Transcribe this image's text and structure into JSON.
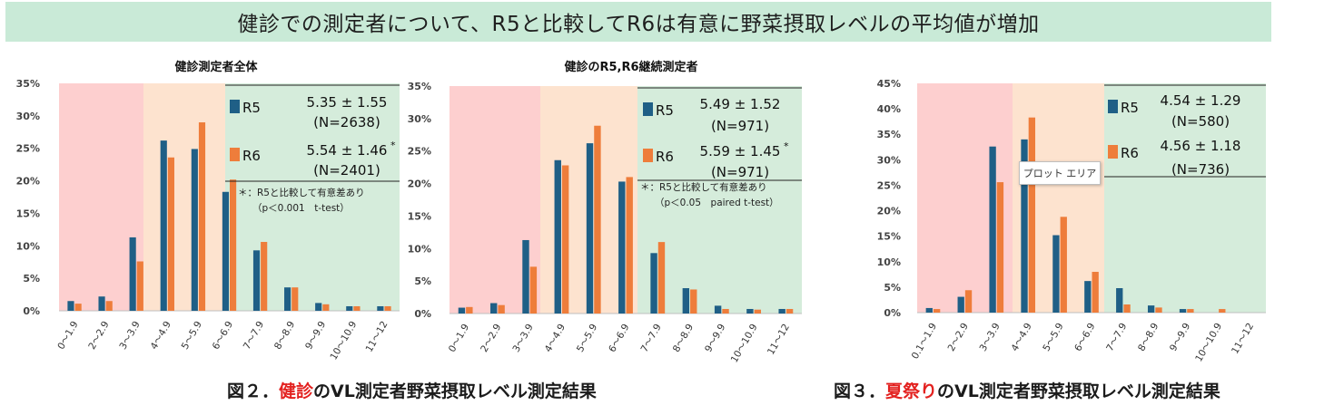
{
  "banner": {
    "title": "健診での測定者について、R5と比較してR6は有意に野菜摂取レベルの平均値が増加"
  },
  "captions": [
    {
      "prefix": "図２．",
      "highlight": "健診",
      "suffix": "のVL測定者野菜摂取レベル測定結果"
    },
    {
      "prefix": "図３．",
      "highlight": "夏祭り",
      "suffix": "のVL測定者野菜摂取レベル測定結果"
    }
  ],
  "tooltip": {
    "text": "プロット エリア"
  },
  "colors": {
    "r5": "#1f5f86",
    "r6": "#ee7d3b",
    "zone_red": "#fdcfcf",
    "zone_orange": "#fde3cf",
    "zone_green": "#d5ecdb"
  },
  "chart_data": [
    {
      "type": "bar",
      "title": "健診測定者全体",
      "categories": [
        "0～1.9",
        "2～2.9",
        "3～3.9",
        "4～4.9",
        "5～5.9",
        "6～6.9",
        "7～7.9",
        "8～8.9",
        "9～9.9",
        "10～10.9",
        "11～12"
      ],
      "series": [
        {
          "name": "R5",
          "values": [
            1.5,
            2.2,
            11.3,
            26.2,
            24.9,
            18.3,
            9.3,
            3.6,
            1.2,
            0.7,
            0.7
          ]
        },
        {
          "name": "R6",
          "values": [
            1.1,
            1.5,
            7.6,
            23.6,
            29.0,
            20.2,
            10.6,
            3.6,
            1.0,
            0.7,
            0.7
          ]
        }
      ],
      "ylim": [
        0,
        35
      ],
      "yticks": [
        "0%",
        "5%",
        "10%",
        "15%",
        "20%",
        "25%",
        "30%",
        "35%"
      ],
      "legend": [
        {
          "label": "R5",
          "stat": "5.35 ± 1.55",
          "n": "(N=2638)",
          "mark": ""
        },
        {
          "label": "R6",
          "stat": "5.54 ± 1.46",
          "n": "(N=2401)",
          "mark": "*"
        }
      ],
      "note": [
        "＊：R5と比較して有意差あり",
        "（p＜0.001　t-test）"
      ]
    },
    {
      "type": "bar",
      "title": "健診のR5,R6継続測定者",
      "categories": [
        "0～1.9",
        "2～2.9",
        "3～3.9",
        "4～4.9",
        "5～5.9",
        "6～6.9",
        "7～7.9",
        "8～8.9",
        "9～9.9",
        "10～10.9",
        "11～12"
      ],
      "series": [
        {
          "name": "R5",
          "values": [
            0.9,
            1.6,
            11.3,
            23.6,
            26.2,
            20.3,
            9.3,
            3.9,
            1.2,
            0.7,
            0.7
          ]
        },
        {
          "name": "R6",
          "values": [
            1.0,
            1.3,
            7.2,
            22.8,
            28.9,
            21.0,
            11.0,
            3.7,
            0.7,
            0.6,
            0.7
          ]
        }
      ],
      "ylim": [
        0,
        35
      ],
      "yticks": [
        "0%",
        "5%",
        "10%",
        "15%",
        "20%",
        "25%",
        "30%",
        "35%"
      ],
      "legend": [
        {
          "label": "R5",
          "stat": "5.49 ± 1.52",
          "n": "(N=971)",
          "mark": ""
        },
        {
          "label": "R6",
          "stat": "5.59 ± 1.45",
          "n": "(N=971)",
          "mark": "*"
        }
      ],
      "note": [
        "＊：R5と比較して有意差あり",
        "（p＜0.05　paired t-test）"
      ]
    },
    {
      "type": "bar",
      "title": "",
      "categories": [
        "0.1～1.9",
        "2～2.9",
        "3～3.9",
        "4～4.9",
        "5～5.9",
        "6～6.9",
        "7～7.9",
        "8～8.9",
        "9～9.9",
        "10～10.9",
        "11～12"
      ],
      "series": [
        {
          "name": "R5",
          "values": [
            0.9,
            3.1,
            32.6,
            34.0,
            15.2,
            6.2,
            4.8,
            1.4,
            0.7,
            0.0,
            0.0
          ]
        },
        {
          "name": "R6",
          "values": [
            0.7,
            4.4,
            25.6,
            38.3,
            18.8,
            8.0,
            1.6,
            1.0,
            0.7,
            0.7,
            0.0
          ]
        }
      ],
      "ylim": [
        0,
        45
      ],
      "yticks": [
        "0%",
        "5%",
        "10%",
        "15%",
        "20%",
        "25%",
        "30%",
        "35%",
        "40%",
        "45%"
      ],
      "legend": [
        {
          "label": "R5",
          "stat": "4.54 ± 1.29",
          "n": "(N=580)",
          "mark": ""
        },
        {
          "label": "R6",
          "stat": "4.56 ± 1.18",
          "n": "(N=736)",
          "mark": ""
        }
      ],
      "note": []
    }
  ]
}
